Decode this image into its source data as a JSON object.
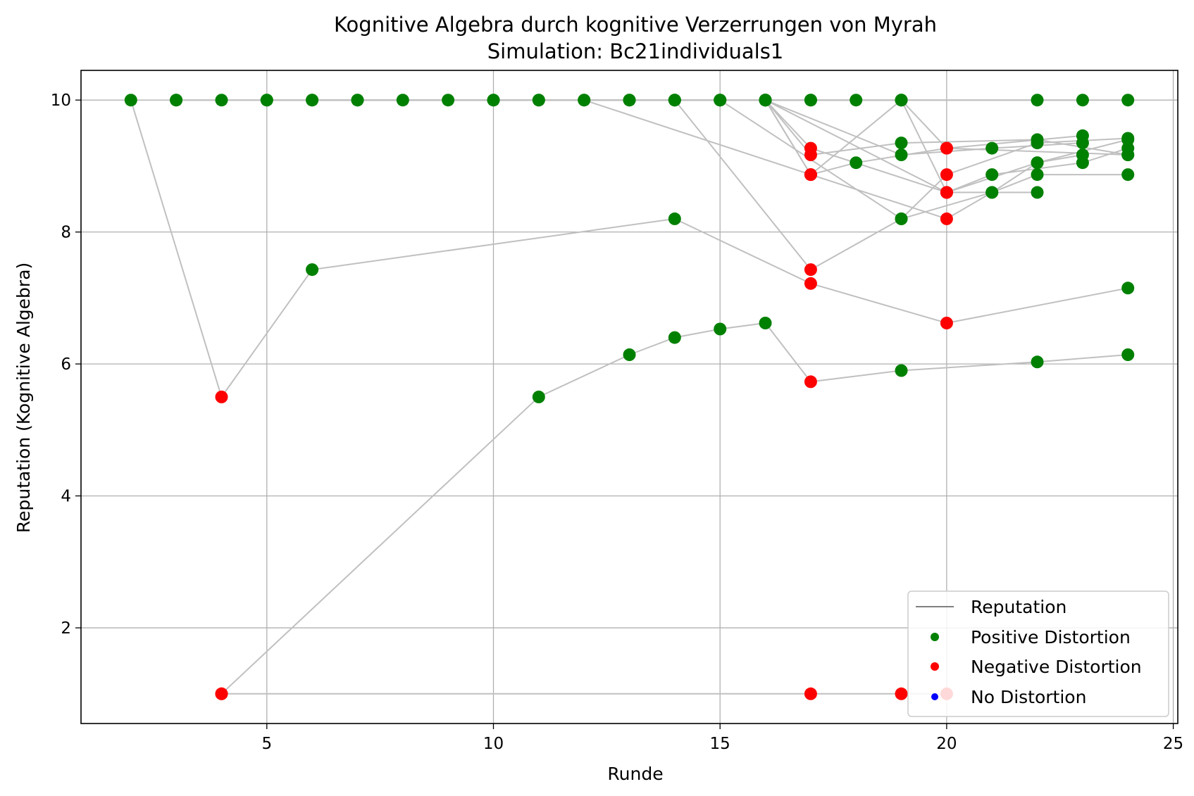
{
  "chart_data": {
    "type": "scatter",
    "title": "Kognitive Algebra durch kognitive Verzerrungen von Myrah",
    "subtitle": "Simulation: Bc21individuals1",
    "xlabel": "Runde",
    "ylabel": "Reputation (Kognitive Algebra)",
    "xlim": [
      0.9,
      25.1
    ],
    "ylim": [
      0.55,
      10.45
    ],
    "xticks": [
      5,
      10,
      15,
      20,
      25
    ],
    "yticks": [
      2,
      4,
      6,
      8,
      10
    ],
    "grid": true,
    "legend_position": "lower-right",
    "legend": [
      {
        "label": "Reputation",
        "kind": "line",
        "color": "#808080"
      },
      {
        "label": "Positive Distortion",
        "kind": "marker",
        "color": "#008000"
      },
      {
        "label": "Negative Distortion",
        "kind": "marker",
        "color": "#ff0000"
      },
      {
        "label": "No Distortion",
        "kind": "marker",
        "color": "#0000ff"
      }
    ],
    "colors": {
      "positive": "#008000",
      "negative": "#ff0000",
      "none": "#0000ff",
      "line": "#c0c0c0",
      "grid": "#b0b0b0"
    },
    "series": [
      {
        "points": [
          [
            2,
            10,
            "p"
          ],
          [
            4,
            5.5,
            "n"
          ],
          [
            6,
            7.43,
            "p"
          ],
          [
            14,
            8.2,
            "p"
          ],
          [
            17,
            7.22,
            "n"
          ],
          [
            20,
            6.62,
            "n"
          ],
          [
            24,
            7.15,
            "p"
          ]
        ]
      },
      {
        "points": [
          [
            4,
            1.0,
            "n"
          ],
          [
            11,
            5.5,
            "p"
          ],
          [
            13,
            6.14,
            "p"
          ],
          [
            14,
            6.4,
            "p"
          ],
          [
            15,
            6.53,
            "p"
          ],
          [
            16,
            6.62,
            "p"
          ],
          [
            17,
            5.73,
            "n"
          ],
          [
            19,
            5.9,
            "p"
          ],
          [
            22,
            6.03,
            "p"
          ],
          [
            24,
            6.14,
            "p"
          ]
        ]
      },
      {
        "points": [
          [
            4,
            1.0,
            "n"
          ],
          [
            17,
            1.0,
            "n"
          ],
          [
            19,
            1.0,
            "n"
          ],
          [
            20,
            1.0,
            "n"
          ]
        ]
      },
      {
        "points": [
          [
            3,
            10,
            "p"
          ],
          [
            5,
            10,
            "p"
          ],
          [
            7,
            10,
            "p"
          ],
          [
            9,
            10,
            "p"
          ],
          [
            11,
            10,
            "p"
          ],
          [
            13,
            10,
            "p"
          ],
          [
            15,
            10,
            "p"
          ],
          [
            17,
            10,
            "p"
          ],
          [
            19,
            10,
            "p"
          ],
          [
            22,
            10,
            "p"
          ],
          [
            24,
            10,
            "p"
          ]
        ]
      },
      {
        "points": [
          [
            3,
            10,
            "p"
          ],
          [
            4,
            10,
            "p"
          ],
          [
            6,
            10,
            "p"
          ],
          [
            8,
            10,
            "p"
          ],
          [
            10,
            10,
            "p"
          ],
          [
            12,
            10,
            "p"
          ],
          [
            14,
            10,
            "p"
          ],
          [
            16,
            10,
            "p"
          ],
          [
            18,
            10,
            "p"
          ],
          [
            23,
            10,
            "p"
          ]
        ]
      },
      {
        "points": [
          [
            5,
            10,
            "p"
          ],
          [
            7,
            10,
            "p"
          ],
          [
            10,
            10,
            "p"
          ],
          [
            13,
            10,
            "p"
          ],
          [
            14,
            10,
            "p"
          ],
          [
            17,
            7.43,
            "n"
          ],
          [
            19,
            8.2,
            "p"
          ],
          [
            21,
            8.6,
            "p"
          ],
          [
            22,
            9.05,
            "p"
          ],
          [
            24,
            9.4,
            "p"
          ]
        ]
      },
      {
        "points": [
          [
            6,
            10,
            "p"
          ],
          [
            11,
            10,
            "p"
          ],
          [
            15,
            10,
            "p"
          ],
          [
            19,
            8.2,
            "p"
          ],
          [
            20,
            8.87,
            "n"
          ],
          [
            22,
            9.35,
            "p"
          ],
          [
            24,
            9.42,
            "p"
          ]
        ]
      },
      {
        "points": [
          [
            12,
            10,
            "p"
          ],
          [
            17,
            8.87,
            "n"
          ],
          [
            18,
            9.05,
            "p"
          ],
          [
            20,
            9.27,
            "n"
          ],
          [
            23,
            9.46,
            "p"
          ]
        ]
      },
      {
        "points": [
          [
            15,
            10,
            "p"
          ],
          [
            16,
            10,
            "p"
          ],
          [
            17,
            9.27,
            "n"
          ],
          [
            20,
            8.6,
            "n"
          ],
          [
            21,
            8.87,
            "p"
          ],
          [
            23,
            9.05,
            "p"
          ],
          [
            24,
            9.27,
            "p"
          ]
        ]
      },
      {
        "points": [
          [
            16,
            10,
            "p"
          ],
          [
            17,
            9.17,
            "n"
          ],
          [
            19,
            9.35,
            "p"
          ],
          [
            22,
            9.4,
            "p"
          ],
          [
            24,
            9.17,
            "p"
          ]
        ]
      },
      {
        "points": [
          [
            16,
            10,
            "p"
          ],
          [
            19,
            9.17,
            "p"
          ],
          [
            21,
            9.27,
            "p"
          ],
          [
            23,
            9.35,
            "p"
          ]
        ]
      },
      {
        "points": [
          [
            16,
            10,
            "p"
          ],
          [
            17,
            8.87,
            "n"
          ],
          [
            20,
            8.2,
            "n"
          ],
          [
            21,
            8.6,
            "p"
          ],
          [
            22,
            8.87,
            "p"
          ],
          [
            24,
            8.87,
            "p"
          ]
        ]
      },
      {
        "points": [
          [
            16,
            10,
            "p"
          ],
          [
            20,
            8.6,
            "n"
          ],
          [
            22,
            9.05,
            "p"
          ],
          [
            23,
            9.17,
            "p"
          ]
        ]
      },
      {
        "points": [
          [
            14,
            10,
            "p"
          ],
          [
            17,
            10,
            "p"
          ],
          [
            19,
            10,
            "p"
          ],
          [
            20,
            8.6,
            "n"
          ],
          [
            22,
            8.6,
            "p"
          ]
        ]
      },
      {
        "points": [
          [
            16,
            10,
            "p"
          ],
          [
            17,
            8.87,
            "n"
          ],
          [
            19,
            10,
            "p"
          ],
          [
            20,
            9.27,
            "n"
          ],
          [
            24,
            9.17,
            "p"
          ]
        ]
      }
    ]
  }
}
